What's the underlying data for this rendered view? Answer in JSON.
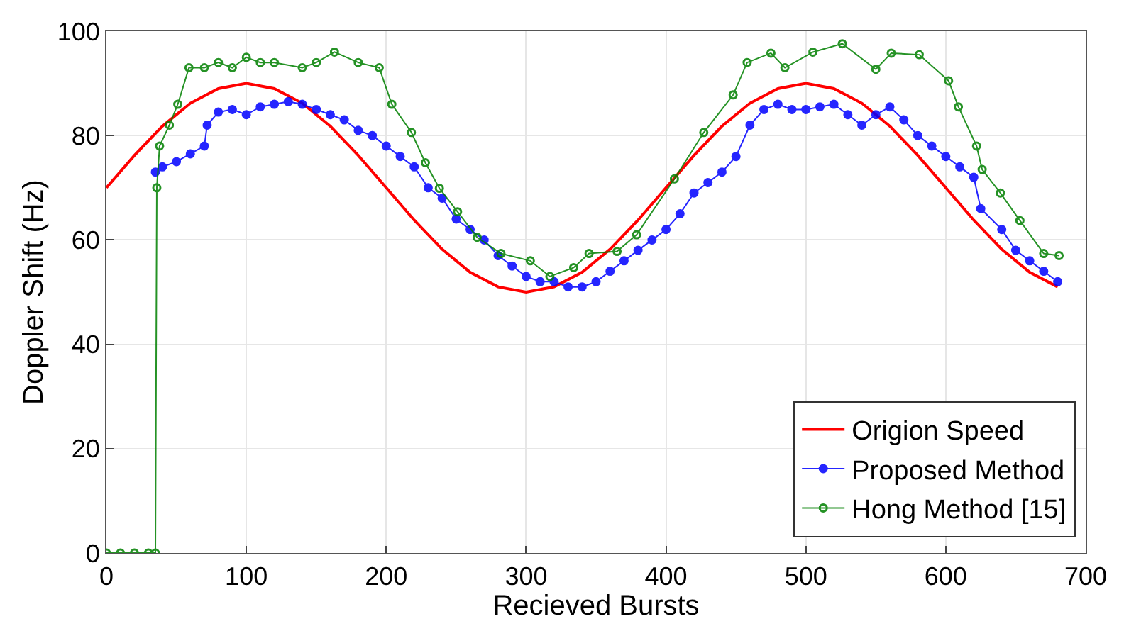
{
  "chart_data": {
    "type": "line",
    "xlabel": "Recieved Bursts",
    "ylabel": "Doppler Shift (Hz)",
    "xlim": [
      0,
      700
    ],
    "ylim": [
      0,
      100
    ],
    "xticks": [
      0,
      100,
      200,
      300,
      400,
      500,
      600,
      700
    ],
    "yticks": [
      0,
      20,
      40,
      60,
      80,
      100
    ],
    "grid": true,
    "legend": "bottom right",
    "series": [
      {
        "name": "Origion Speed",
        "color": "#ff0000",
        "marker": "none",
        "x": [
          0,
          20,
          40,
          60,
          80,
          100,
          120,
          140,
          160,
          180,
          200,
          220,
          240,
          260,
          280,
          300,
          320,
          340,
          360,
          380,
          400,
          420,
          440,
          460,
          480,
          500,
          520,
          540,
          560,
          580,
          600,
          620,
          640,
          660,
          680
        ],
        "values": [
          70,
          76.2,
          81.8,
          86.2,
          89,
          90,
          89,
          86.2,
          81.8,
          76.2,
          70,
          63.8,
          58.2,
          53.8,
          51,
          50,
          51,
          53.8,
          58.2,
          63.8,
          70,
          76.2,
          81.8,
          86.2,
          89,
          90,
          89,
          86.2,
          81.8,
          76.2,
          70,
          63.8,
          58.2,
          53.8,
          51
        ]
      },
      {
        "name": "Proposed Method",
        "color": "#0000ff",
        "marker": "circle",
        "x": [
          35,
          40,
          50,
          60,
          70,
          72,
          80,
          90,
          100,
          110,
          120,
          130,
          140,
          150,
          160,
          170,
          180,
          190,
          200,
          210,
          220,
          230,
          240,
          250,
          260,
          270,
          280,
          290,
          300,
          310,
          320,
          330,
          340,
          350,
          360,
          370,
          380,
          390,
          400,
          410,
          420,
          430,
          440,
          450,
          460,
          470,
          480,
          490,
          500,
          510,
          520,
          530,
          540,
          550,
          560,
          570,
          580,
          590,
          600,
          610,
          620,
          625,
          640,
          650,
          660,
          670,
          680
        ],
        "values": [
          73,
          74,
          75,
          76.5,
          78,
          82,
          84.5,
          85,
          84,
          85.5,
          86,
          86.5,
          86,
          85,
          84,
          83,
          81,
          80,
          78,
          76,
          74,
          70,
          68,
          64,
          62,
          60,
          57,
          55,
          53,
          52,
          52,
          51,
          51,
          52,
          54,
          56,
          58,
          60,
          62,
          65,
          69,
          71,
          73,
          76,
          82,
          85,
          86,
          85,
          85,
          85.5,
          86,
          84,
          82,
          84,
          85.5,
          83,
          80,
          78,
          76,
          74,
          72,
          66,
          62,
          58,
          56,
          54,
          52
        ]
      },
      {
        "name": "Hong Method [15]",
        "color": "#008000",
        "marker": "circle",
        "x": [
          0,
          10,
          20,
          30,
          35,
          36,
          38,
          45,
          51,
          59,
          70,
          80,
          90,
          100,
          110,
          120,
          140,
          150,
          163,
          180,
          195,
          204,
          218,
          228,
          238,
          251,
          265,
          282,
          303,
          317,
          334,
          345,
          365,
          379,
          406,
          427,
          448,
          458,
          475,
          485,
          505,
          526,
          550,
          561,
          581,
          602,
          609,
          622,
          626,
          639,
          653,
          670,
          681
        ],
        "values": [
          0,
          0,
          0,
          0,
          0,
          70,
          78,
          82,
          86,
          93,
          93,
          94,
          93,
          95,
          94,
          94,
          93,
          94,
          96,
          94,
          93,
          86,
          80.6,
          74.8,
          69.9,
          65.4,
          60.5,
          57.4,
          56,
          53,
          54.7,
          57.4,
          57.8,
          61,
          71.7,
          80.6,
          87.8,
          94,
          95.8,
          93,
          96,
          97.6,
          92.7,
          95.8,
          95.5,
          90.5,
          85.5,
          78,
          73.5,
          69,
          63.7,
          57.4,
          57
        ]
      }
    ]
  }
}
